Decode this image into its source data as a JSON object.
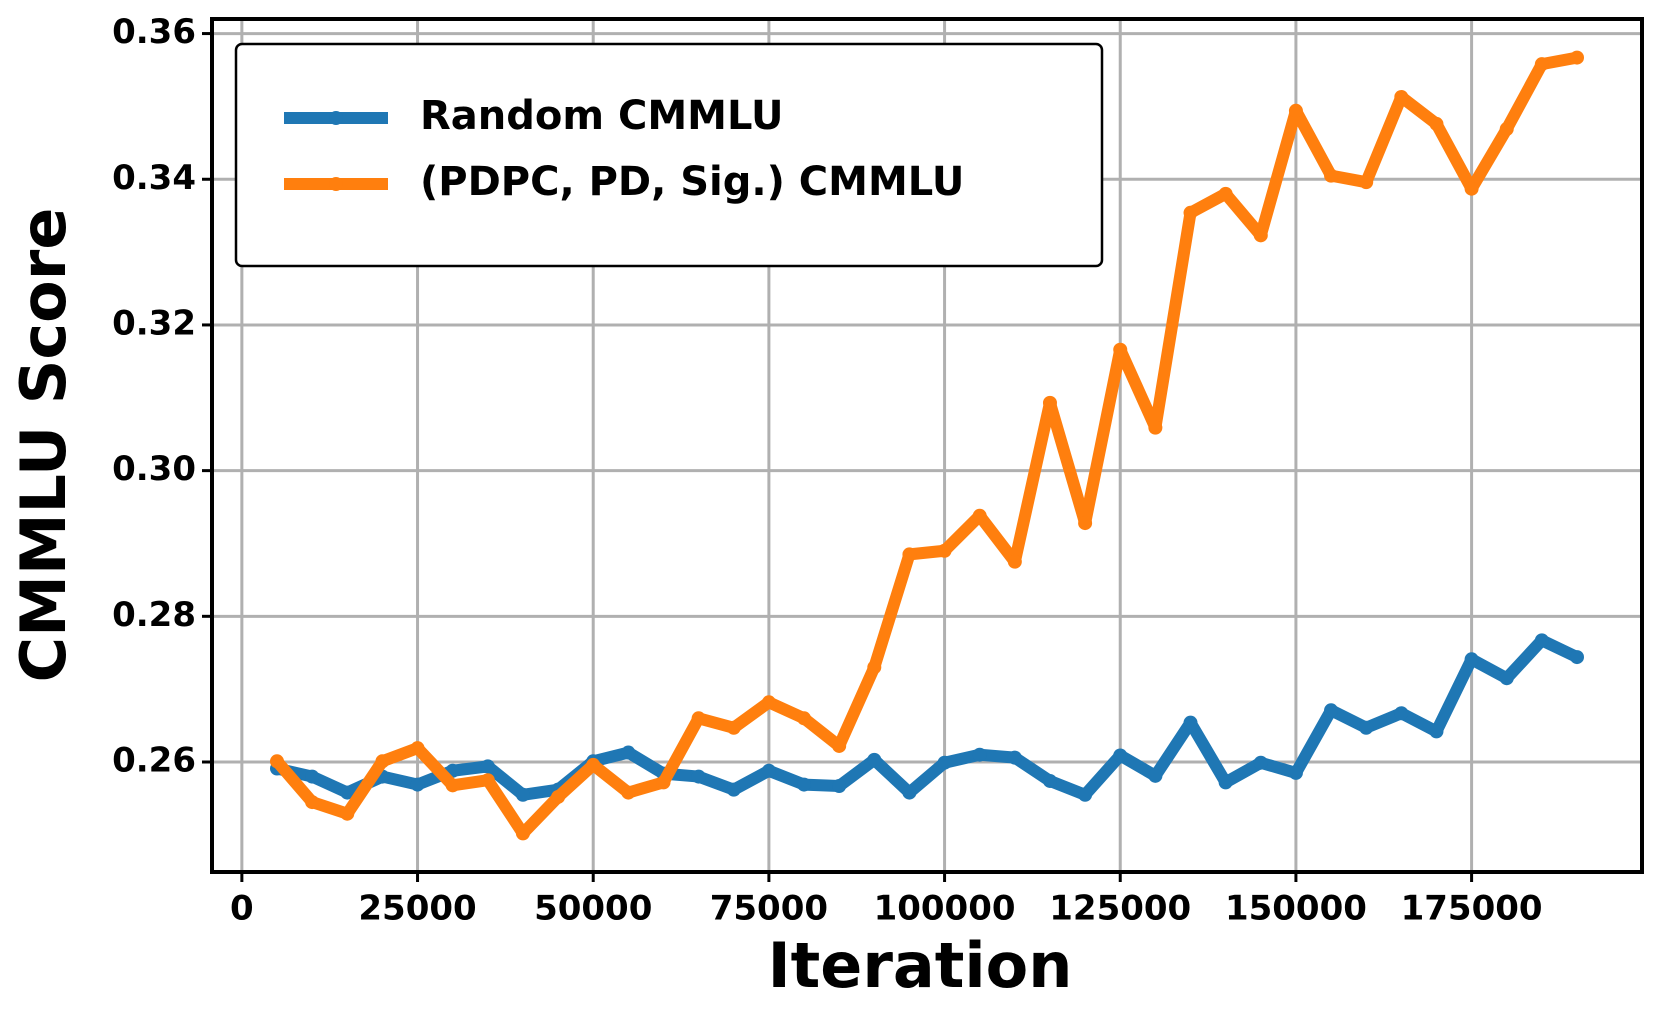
{
  "chart_data": {
    "type": "line",
    "xlabel": "Iteration",
    "ylabel": "CMMLU Score",
    "x": [
      5000,
      10000,
      15000,
      20000,
      25000,
      30000,
      35000,
      40000,
      45000,
      50000,
      55000,
      60000,
      65000,
      70000,
      75000,
      80000,
      85000,
      90000,
      95000,
      100000,
      105000,
      110000,
      115000,
      120000,
      125000,
      130000,
      135000,
      140000,
      145000,
      150000,
      155000,
      160000,
      165000,
      170000,
      175000,
      180000,
      185000,
      190000
    ],
    "series": [
      {
        "name": "Random CMMLU",
        "color": "#1f77b4",
        "values": [
          0.2591,
          0.258,
          0.2558,
          0.258,
          0.2569,
          0.2588,
          0.2594,
          0.2555,
          0.2562,
          0.2601,
          0.2613,
          0.2584,
          0.258,
          0.2562,
          0.2588,
          0.2569,
          0.2567,
          0.2603,
          0.2558,
          0.2599,
          0.261,
          0.2606,
          0.2574,
          0.2555,
          0.2609,
          0.2581,
          0.2654,
          0.2572,
          0.2599,
          0.2585,
          0.2671,
          0.2647,
          0.2667,
          0.2642,
          0.2741,
          0.2715,
          0.2767,
          0.2744
        ]
      },
      {
        "name": "(PDPC, PD, Sig.) CMMLU",
        "color": "#ff7f0e",
        "values": [
          0.2601,
          0.2545,
          0.2529,
          0.2601,
          0.2619,
          0.2568,
          0.2575,
          0.2502,
          0.2552,
          0.2596,
          0.2558,
          0.2572,
          0.266,
          0.2647,
          0.2682,
          0.266,
          0.2622,
          0.273,
          0.2885,
          0.289,
          0.2938,
          0.2875,
          0.3093,
          0.2928,
          0.3166,
          0.3059,
          0.3354,
          0.338,
          0.3323,
          0.3494,
          0.3405,
          0.3396,
          0.3513,
          0.3476,
          0.3387,
          0.3469,
          0.3558,
          0.3567
        ]
      }
    ],
    "xlim": [
      -4250,
      199250
    ],
    "ylim": [
      0.2449,
      0.362
    ],
    "xticks": [
      0,
      25000,
      50000,
      75000,
      100000,
      125000,
      150000,
      175000
    ],
    "yticks": [
      {
        "value": 0.26,
        "label": "0.26"
      },
      {
        "value": 0.28,
        "label": "0.28"
      },
      {
        "value": 0.3,
        "label": "0.30"
      },
      {
        "value": 0.32,
        "label": "0.32"
      },
      {
        "value": 0.34,
        "label": "0.34"
      },
      {
        "value": 0.36,
        "label": "0.36"
      }
    ],
    "grid": true,
    "legend": "upper left"
  }
}
